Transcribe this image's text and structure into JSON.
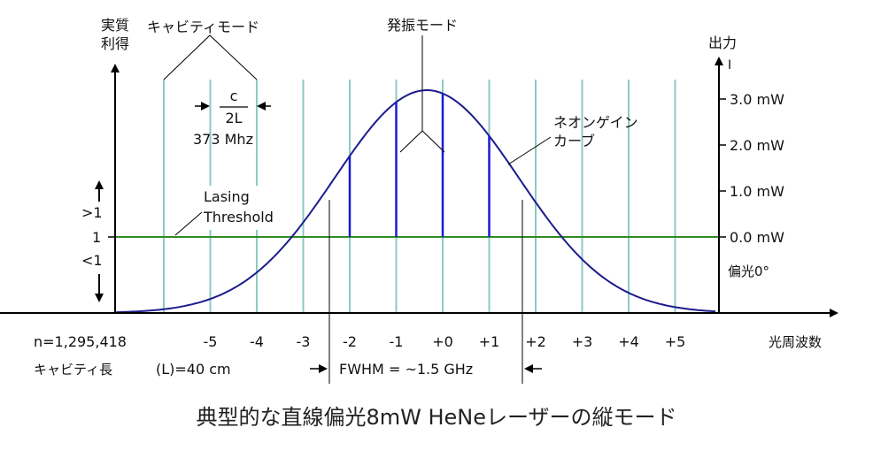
{
  "labels": {
    "y_left_title_line1": "実質",
    "y_left_title_line2": "利得",
    "cavity_modes": "キャビティモード",
    "osc_modes": "発振モード",
    "y_right_title": "出力",
    "fraction_num": "c",
    "fraction_den": "2L",
    "spacing_value": "373 Mhz",
    "neon_gain_line1": "ネオンゲイン",
    "neon_gain_line2": "カーブ",
    "lasing_line1": "Lasing",
    "lasing_line2": "Threshold",
    "gain_gt1": ">1",
    "gain_eq1": "1",
    "gain_lt1": "<1",
    "polarization": "偏光0°",
    "n_label": "n=1,295,418",
    "cavity_length_label": "キャビティ長",
    "cavity_length_value": "(L)=40 cm",
    "fwhm": "FWHM = ~1.5 GHz",
    "x_axis_title": "光周波数",
    "power_marker": "I"
  },
  "x_ticks": [
    "-5",
    "-4",
    "-3",
    "-2",
    "-1",
    "+0",
    "+1",
    "+2",
    "+3",
    "+4",
    "+5"
  ],
  "power_ticks": [
    "3.0 mW",
    "2.0 mW",
    "1.0 mW",
    "0.0 mW"
  ],
  "caption": "典型的な直線偏光8mW HeNeレーザーの縦モード",
  "colors": {
    "cavity_mode_lines": "#8cc9c4",
    "gain_curve": "#1c1c8c",
    "laser_modes": "#1a1ad6",
    "threshold": "#2e8b22",
    "polarization_text": "#1a1ad6"
  }
}
